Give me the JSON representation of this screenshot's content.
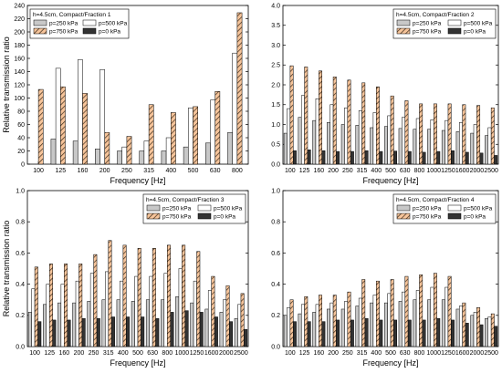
{
  "figure_colors": {
    "p250": "#c8c8c8",
    "p500": "#ffffff",
    "p750": "#f6c49a",
    "p750_hatch": "#3a2a1a",
    "p0": "#333333"
  },
  "chart_data": [
    {
      "type": "bar",
      "legend_title": "h=4.5cm, Compact/Fraction 1",
      "xlabel": "Frequency [Hz]",
      "ylabel": "Relative transmission ratio",
      "categories": [
        "100",
        "125",
        "160",
        "200",
        "250",
        "315",
        "400",
        "500",
        "630",
        "800"
      ],
      "ylim": [
        0,
        240
      ],
      "yticks": [
        "0",
        "20",
        "40",
        "60",
        "80",
        "100",
        "120",
        "140",
        "160",
        "180",
        "200",
        "220",
        "240"
      ],
      "series": [
        {
          "name": "p=250 kPa",
          "values": [
            0,
            38,
            35,
            23,
            20,
            20,
            20,
            26,
            32,
            48
          ]
        },
        {
          "name": "p=500 kPa",
          "values": [
            0,
            145,
            158,
            143,
            26,
            35,
            40,
            85,
            97,
            168
          ]
        },
        {
          "name": "p=750 kPa",
          "values": [
            113,
            117,
            107,
            48,
            42,
            90,
            78,
            87,
            110,
            229
          ]
        },
        {
          "name": "p=0 kPa",
          "values": [
            0,
            0,
            0,
            0,
            0,
            0,
            0,
            0,
            0,
            0
          ]
        }
      ],
      "legend_position": "top-left"
    },
    {
      "type": "bar",
      "legend_title": "h=4.5cm, Compact/Fraction 2",
      "xlabel": "Frequency [Hz]",
      "ylabel": "",
      "categories": [
        "100",
        "125",
        "160",
        "200",
        "250",
        "315",
        "400",
        "500",
        "630",
        "800",
        "1000",
        "1250",
        "1600",
        "2000",
        "2500"
      ],
      "ylim": [
        0,
        4.0
      ],
      "yticks": [
        "0.0",
        "0.5",
        "1.0",
        "1.5",
        "2.0",
        "2.5",
        "3.0",
        "3.5",
        "4.0"
      ],
      "series": [
        {
          "name": "p=250 kPa",
          "values": [
            0.78,
            1.18,
            1.1,
            1.05,
            1.0,
            0.98,
            0.92,
            0.95,
            0.9,
            0.88,
            0.88,
            0.85,
            0.82,
            0.78,
            0.72
          ]
        },
        {
          "name": "p=500 kPa",
          "values": [
            1.4,
            1.73,
            1.65,
            1.5,
            1.42,
            1.35,
            1.3,
            1.22,
            1.18,
            1.15,
            1.12,
            1.1,
            1.05,
            1.0,
            0.92
          ]
        },
        {
          "name": "p=750 kPa",
          "values": [
            2.48,
            2.45,
            2.35,
            2.2,
            2.12,
            2.05,
            1.95,
            1.72,
            1.6,
            1.52,
            1.52,
            1.52,
            1.5,
            1.48,
            1.42
          ]
        },
        {
          "name": "p=0 kPa",
          "values": [
            0.34,
            0.36,
            0.34,
            0.32,
            0.32,
            0.34,
            0.32,
            0.33,
            0.32,
            0.3,
            0.32,
            0.34,
            0.3,
            0.28,
            0.22
          ]
        }
      ],
      "legend_position": "top-right"
    },
    {
      "type": "bar",
      "legend_title": "h=4.5cm, Compact/Fraction 3",
      "xlabel": "Frequency [Hz]",
      "ylabel": "Relative transmission ratio",
      "categories": [
        "100",
        "125",
        "160",
        "200",
        "250",
        "315",
        "400",
        "500",
        "630",
        "800",
        "1000",
        "1250",
        "1600",
        "2000",
        "2500"
      ],
      "ylim": [
        0,
        1.0
      ],
      "yticks": [
        "0.0",
        "0.2",
        "0.4",
        "0.6",
        "0.8",
        "1.0"
      ],
      "series": [
        {
          "name": "p=250 kPa",
          "values": [
            0.22,
            0.27,
            0.28,
            0.28,
            0.29,
            0.3,
            0.3,
            0.29,
            0.3,
            0.3,
            0.32,
            0.28,
            0.24,
            0.22,
            0.18
          ]
        },
        {
          "name": "p=500 kPa",
          "values": [
            0.37,
            0.4,
            0.4,
            0.42,
            0.47,
            0.48,
            0.42,
            0.45,
            0.45,
            0.47,
            0.5,
            0.42,
            0.36,
            0.3,
            0.27
          ]
        },
        {
          "name": "p=750 kPa",
          "values": [
            0.51,
            0.53,
            0.53,
            0.53,
            0.59,
            0.68,
            0.65,
            0.63,
            0.63,
            0.65,
            0.65,
            0.61,
            0.45,
            0.39,
            0.34
          ]
        },
        {
          "name": "p=0 kPa",
          "values": [
            0.16,
            0.17,
            0.17,
            0.18,
            0.18,
            0.19,
            0.19,
            0.19,
            0.18,
            0.22,
            0.23,
            0.22,
            0.19,
            0.16,
            0.11
          ]
        }
      ],
      "legend_position": "top-right"
    },
    {
      "type": "bar",
      "legend_title": "h=4.5cm, Compact/Fraction 4",
      "xlabel": "Frequency [Hz]",
      "ylabel": "",
      "categories": [
        "100",
        "125",
        "160",
        "200",
        "250",
        "315",
        "400",
        "500",
        "630",
        "800",
        "1000",
        "1250",
        "1600",
        "2000",
        "2500"
      ],
      "ylim": [
        0,
        1.0
      ],
      "yticks": [
        "0.0",
        "0.2",
        "0.4",
        "0.6",
        "0.8",
        "1.0"
      ],
      "series": [
        {
          "name": "p=250 kPa",
          "values": [
            0.2,
            0.21,
            0.22,
            0.24,
            0.24,
            0.26,
            0.28,
            0.28,
            0.29,
            0.3,
            0.3,
            0.3,
            0.24,
            0.2,
            0.18
          ]
        },
        {
          "name": "p=500 kPa",
          "values": [
            0.25,
            0.27,
            0.27,
            0.28,
            0.29,
            0.31,
            0.33,
            0.34,
            0.35,
            0.36,
            0.38,
            0.38,
            0.26,
            0.22,
            0.19
          ]
        },
        {
          "name": "p=750 kPa",
          "values": [
            0.3,
            0.32,
            0.33,
            0.33,
            0.35,
            0.43,
            0.42,
            0.43,
            0.45,
            0.46,
            0.47,
            0.45,
            0.28,
            0.25,
            0.21
          ]
        },
        {
          "name": "p=0 kPa",
          "values": [
            0.16,
            0.16,
            0.16,
            0.17,
            0.17,
            0.18,
            0.17,
            0.17,
            0.17,
            0.17,
            0.18,
            0.17,
            0.15,
            0.14,
            0.13
          ]
        }
      ],
      "legend_position": "top-right"
    }
  ]
}
